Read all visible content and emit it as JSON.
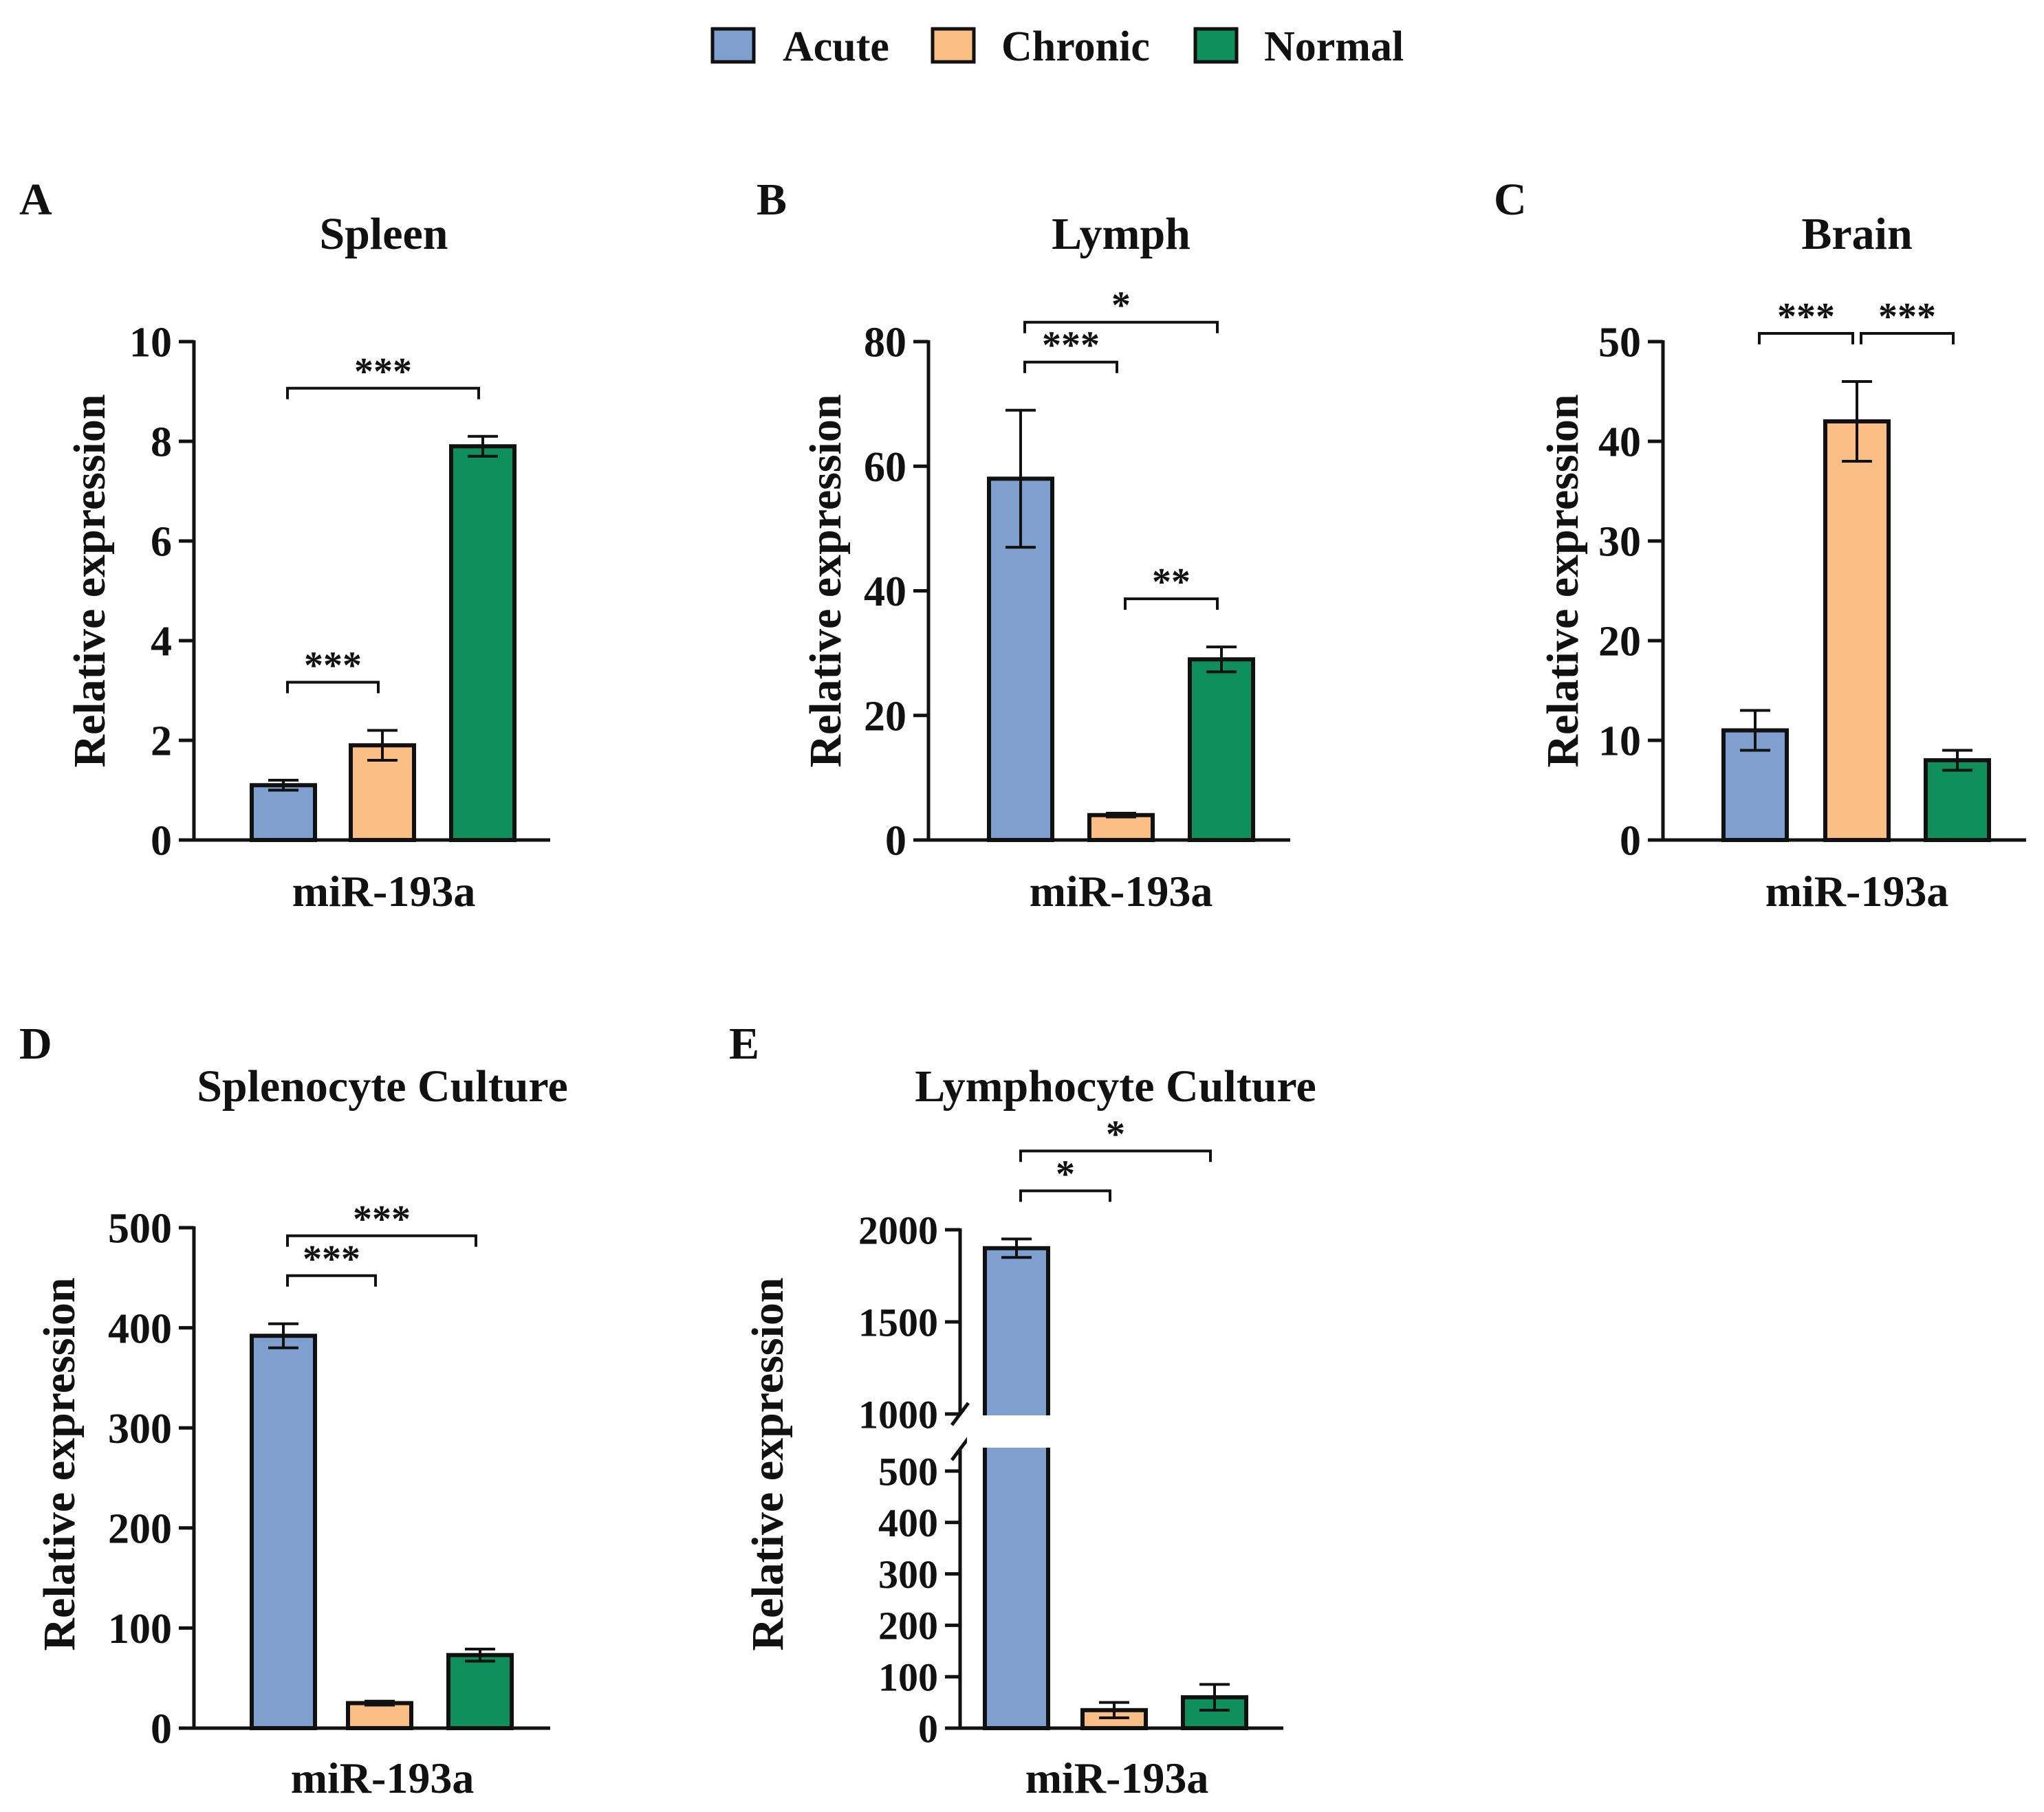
{
  "legend": [
    {
      "label": "Acute",
      "color": "#7f9fcf"
    },
    {
      "label": "Chronic",
      "color": "#fbbf85"
    },
    {
      "label": "Normal",
      "color": "#0f8f5a"
    }
  ],
  "chart_data": [
    {
      "type": "bar",
      "panel": "A",
      "title": "Spleen",
      "xlabel": "miR-193a",
      "ylabel": "Relative expression",
      "ylim": [
        0,
        10
      ],
      "yticks": [
        "0",
        "2",
        "4",
        "6",
        "8",
        "10"
      ],
      "ytick_values": [
        0,
        2,
        4,
        6,
        8,
        10
      ],
      "categories": [
        "Acute",
        "Chronic",
        "Normal"
      ],
      "values": [
        1.1,
        1.9,
        7.9
      ],
      "errors": [
        0.1,
        0.3,
        0.2
      ],
      "significance": [
        {
          "from": 0,
          "to": 1,
          "label": "***"
        },
        {
          "from": 0,
          "to": 2,
          "label": "***"
        }
      ]
    },
    {
      "type": "bar",
      "panel": "B",
      "title": "Lymph",
      "xlabel": "miR-193a",
      "ylabel": "Relative expression",
      "ylim": [
        0,
        80
      ],
      "yticks": [
        "0",
        "20",
        "40",
        "60",
        "80"
      ],
      "ytick_values": [
        0,
        20,
        40,
        60,
        80
      ],
      "categories": [
        "Acute",
        "Chronic",
        "Normal"
      ],
      "values": [
        58,
        4,
        29
      ],
      "errors": [
        11,
        0.3,
        2
      ],
      "significance": [
        {
          "from": 0,
          "to": 1,
          "label": "***"
        },
        {
          "from": 0,
          "to": 2,
          "label": "*"
        },
        {
          "from": 1,
          "to": 2,
          "label": "**"
        }
      ]
    },
    {
      "type": "bar",
      "panel": "C",
      "title": "Brain",
      "xlabel": "miR-193a",
      "ylabel": "Relative expression",
      "ylim": [
        0,
        50
      ],
      "yticks": [
        "0",
        "10",
        "20",
        "30",
        "40",
        "50"
      ],
      "ytick_values": [
        0,
        10,
        20,
        30,
        40,
        50
      ],
      "categories": [
        "Acute",
        "Chronic",
        "Normal"
      ],
      "values": [
        11,
        42,
        8
      ],
      "errors": [
        2,
        4,
        1
      ],
      "significance": [
        {
          "from": 0,
          "to": 1,
          "label": "***"
        },
        {
          "from": 1,
          "to": 2,
          "label": "***"
        }
      ]
    },
    {
      "type": "bar",
      "panel": "D",
      "title": "Splenocyte Culture",
      "xlabel": "miR-193a",
      "ylabel": "Relative expression",
      "ylim": [
        0,
        500
      ],
      "yticks": [
        "0",
        "100",
        "200",
        "300",
        "400",
        "500"
      ],
      "ytick_values": [
        0,
        100,
        200,
        300,
        400,
        500
      ],
      "categories": [
        "Acute",
        "Chronic",
        "Normal"
      ],
      "values": [
        392,
        25,
        73
      ],
      "errors": [
        12,
        2,
        6
      ],
      "significance": [
        {
          "from": 0,
          "to": 1,
          "label": "***"
        },
        {
          "from": 0,
          "to": 2,
          "label": "***"
        }
      ]
    },
    {
      "type": "bar",
      "panel": "E",
      "title": "Lymphocyte Culture",
      "xlabel": "miR-193a",
      "ylabel": "Relative expression",
      "ylim": [
        0,
        2000
      ],
      "axis_break": [
        500,
        1000
      ],
      "yticks": [
        "0",
        "100",
        "200",
        "300",
        "400",
        "500",
        "1000",
        "1500",
        "2000"
      ],
      "ytick_values": [
        0,
        100,
        200,
        300,
        400,
        500,
        1000,
        1500,
        2000
      ],
      "categories": [
        "Acute",
        "Chronic",
        "Normal"
      ],
      "values": [
        1900,
        35,
        60
      ],
      "errors": [
        50,
        15,
        25
      ],
      "significance": [
        {
          "from": 0,
          "to": 1,
          "label": "*"
        },
        {
          "from": 0,
          "to": 2,
          "label": "*"
        }
      ]
    }
  ]
}
